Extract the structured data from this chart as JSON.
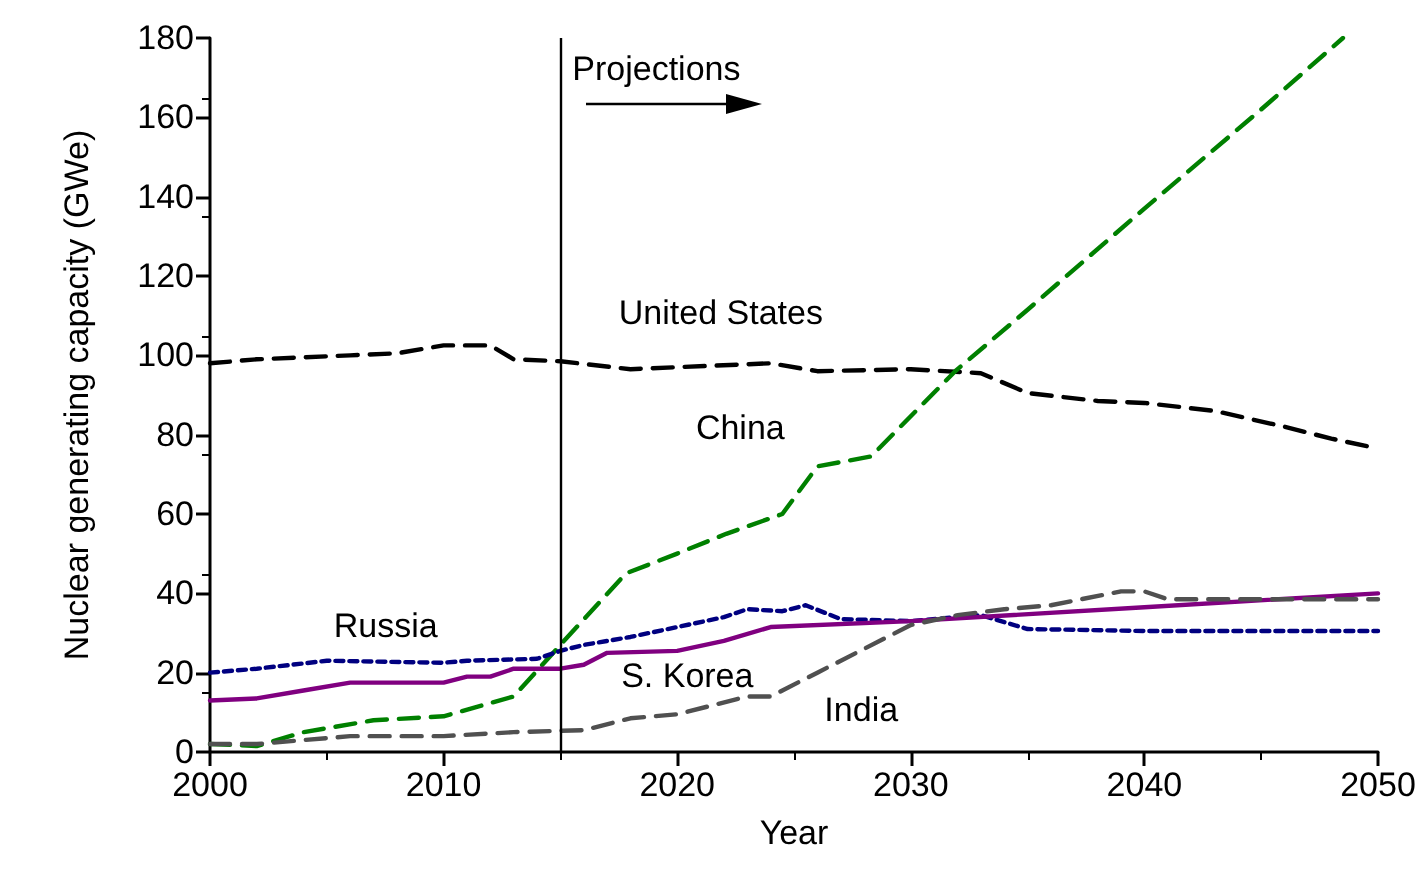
{
  "chart_data": {
    "type": "line",
    "xlabel": "Year",
    "ylabel": "Nuclear generating capacity (GWe)",
    "xlim": [
      2000,
      2050
    ],
    "xticks": [
      2000,
      2010,
      2020,
      2030,
      2040,
      2050
    ],
    "ylim": [
      0,
      180
    ],
    "yticks": [
      0,
      20,
      40,
      60,
      80,
      100,
      120,
      140,
      160,
      180
    ],
    "grid": false,
    "legend": false,
    "marker": "none",
    "ref_lines": [
      {
        "axis": "x",
        "value": 2015,
        "label": "Projections",
        "color": "#000000",
        "line_style": "solid"
      }
    ],
    "series": [
      {
        "name": "United States",
        "color": "#000000",
        "line_style": "dashed",
        "x": [
          2000,
          2002,
          2006,
          2008,
          2010,
          2012,
          2013,
          2015,
          2018,
          2020,
          2024,
          2026,
          2030,
          2033,
          2035,
          2038,
          2040,
          2043,
          2046,
          2048,
          2050
        ],
        "values": [
          98,
          99,
          100,
          100.5,
          102.5,
          102.5,
          99,
          98.5,
          96.5,
          97,
          98,
          96,
          96.5,
          95.5,
          90.5,
          88.5,
          88,
          86,
          82,
          79,
          76.5
        ]
      },
      {
        "name": "China",
        "color": "#008000",
        "line_style": "dashed",
        "x": [
          2000,
          2002,
          2004,
          2007,
          2010,
          2013,
          2015,
          2017.8,
          2020,
          2022.1,
          2024.5,
          2026,
          2028.3,
          2031.9,
          2035,
          2040,
          2045,
          2048.5
        ],
        "values": [
          2,
          1.5,
          5,
          8,
          9,
          14,
          27,
          45,
          50,
          55,
          60,
          72,
          74.5,
          96,
          111.5,
          137,
          162,
          180
        ]
      },
      {
        "name": "Russia",
        "color": "#000080",
        "line_style": "dotted",
        "x": [
          2000,
          2002,
          2005,
          2010,
          2011,
          2014,
          2015,
          2016,
          2018,
          2020,
          2022,
          2023,
          2024.5,
          2025.5,
          2027,
          2030,
          2033,
          2035,
          2040,
          2050
        ],
        "values": [
          20,
          21,
          23,
          22.5,
          23,
          23.5,
          25.5,
          27,
          29,
          31.5,
          34,
          36,
          35.5,
          37,
          33.5,
          33,
          34.5,
          31,
          30.5,
          30.5
        ]
      },
      {
        "name": "S. Korea",
        "color": "#800080",
        "line_style": "solid",
        "x": [
          2000,
          2002,
          2004,
          2006,
          2010,
          2011,
          2012,
          2013,
          2015,
          2016,
          2017,
          2020,
          2022,
          2024,
          2030,
          2040,
          2050
        ],
        "values": [
          13,
          13.5,
          15.5,
          17.5,
          17.5,
          19,
          19,
          21,
          21,
          22,
          25,
          25.5,
          28,
          31.5,
          33,
          36.5,
          40
        ]
      },
      {
        "name": "India",
        "color": "#505050",
        "line_style": "dashed",
        "x": [
          2000,
          2002,
          2006,
          2010,
          2013,
          2016,
          2018,
          2020,
          2023,
          2024,
          2026,
          2030,
          2032,
          2034,
          2036,
          2039,
          2040,
          2041,
          2050
        ],
        "values": [
          2,
          2,
          4,
          4,
          5,
          5.5,
          8.5,
          9.5,
          14,
          14,
          20,
          32,
          34.5,
          36,
          37,
          40.5,
          40.5,
          38.5,
          38.5
        ]
      }
    ]
  }
}
